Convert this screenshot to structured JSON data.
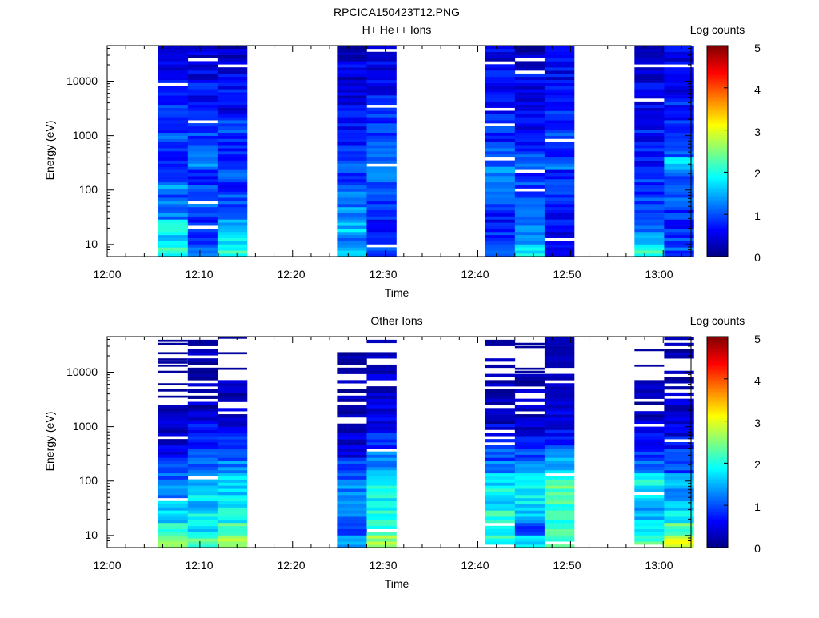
{
  "figure_title": "RPCICA150423T12.PNG",
  "chart_data": [
    {
      "type": "heatmap",
      "title": "H+ He++ Ions",
      "xlabel": "Time",
      "ylabel": "Energy (eV)",
      "y_scale": "log",
      "ylim": [
        6,
        45000
      ],
      "x_range": [
        "12:00",
        "13:03"
      ],
      "x_ticks": [
        "12:00",
        "12:10",
        "12:20",
        "12:30",
        "12:40",
        "12:50",
        "13:00"
      ],
      "y_ticks": [
        "10",
        "100",
        "1000",
        "10000"
      ],
      "colorbar": {
        "label": "Log counts",
        "range": [
          0,
          5
        ],
        "ticks": [
          "0",
          "1",
          "2",
          "3",
          "4",
          "5"
        ],
        "colormap": "jet"
      },
      "grid": false,
      "blocks": [
        {
          "start": "12:05.5",
          "end": "12:08.7",
          "levels": [
            2.1,
            1.7,
            1.9,
            1.2,
            1.1,
            1.3,
            1.0,
            0.9,
            0.8,
            1.0,
            0.9,
            0.7,
            0.8,
            0.6,
            0.7,
            0.5,
            0.4
          ]
        },
        {
          "start": "12:08.7",
          "end": "12:11.9",
          "levels": [
            1.1,
            0.9,
            0.8,
            1.0,
            1.2,
            0.9,
            0.8,
            1.3,
            1.1,
            0.9,
            0.7,
            0.8,
            0.6,
            0.7,
            0.5,
            0.5,
            0.4
          ]
        },
        {
          "start": "12:11.9",
          "end": "12:15.1",
          "levels": [
            2.1,
            1.7,
            1.4,
            1.2,
            1.0,
            0.8,
            1.0,
            0.9,
            0.7,
            0.8,
            0.9,
            0.6,
            0.5,
            0.7,
            0.5,
            0.4,
            0.4
          ]
        },
        {
          "start": "12:24.8",
          "end": "12:28.0",
          "levels": [
            1.6,
            1.3,
            1.6,
            1.4,
            1.2,
            1.1,
            0.9,
            1.0,
            0.8,
            0.6,
            0.7,
            0.6,
            0.5,
            0.6,
            0.4,
            0.5,
            0.3
          ]
        },
        {
          "start": "12:28.0",
          "end": "12:31.2",
          "levels": [
            1.0,
            0.8,
            0.7,
            0.9,
            1.0,
            1.1,
            1.2,
            1.3,
            1.0,
            1.0,
            0.9,
            0.8,
            0.7,
            0.6,
            0.5,
            0.5,
            0.5
          ]
        },
        {
          "start": "12:40.8",
          "end": "12:44.0",
          "levels": [
            1.0,
            0.9,
            0.7,
            0.8,
            1.0,
            1.1,
            1.3,
            1.2,
            1.0,
            0.8,
            0.9,
            0.7,
            0.6,
            0.7,
            0.6,
            0.5,
            0.5
          ]
        },
        {
          "start": "12:44.0",
          "end": "12:47.2",
          "levels": [
            1.8,
            1.3,
            1.2,
            1.1,
            0.9,
            1.0,
            0.8,
            1.1,
            0.9,
            0.8,
            0.6,
            0.7,
            0.5,
            0.4,
            0.6,
            0.4,
            0.3
          ]
        },
        {
          "start": "12:47.2",
          "end": "12:50.4",
          "levels": [
            0.7,
            0.5,
            0.6,
            0.7,
            0.8,
            0.9,
            0.8,
            1.2,
            0.9,
            1.0,
            0.8,
            0.9,
            0.7,
            0.8,
            0.6,
            0.7,
            0.6
          ]
        },
        {
          "start": "12:56.9",
          "end": "13:00.1",
          "levels": [
            2.1,
            1.6,
            1.2,
            1.0,
            0.9,
            0.8,
            0.9,
            0.7,
            0.8,
            0.6,
            0.7,
            0.5,
            0.6,
            0.5,
            0.4,
            0.4,
            0.3
          ]
        },
        {
          "start": "13:00.1",
          "end": "13:03.3",
          "levels": [
            1.0,
            0.9,
            0.8,
            0.9,
            1.0,
            1.2,
            1.1,
            1.6,
            1.0,
            0.9,
            0.8,
            0.7,
            0.8,
            0.6,
            0.6,
            0.5,
            0.5
          ]
        }
      ]
    },
    {
      "type": "heatmap",
      "title": "Other Ions",
      "xlabel": "Time",
      "ylabel": "Energy (eV)",
      "y_scale": "log",
      "ylim": [
        6,
        45000
      ],
      "x_range": [
        "12:00",
        "13:03"
      ],
      "x_ticks": [
        "12:00",
        "12:10",
        "12:20",
        "12:30",
        "12:40",
        "12:50",
        "13:00"
      ],
      "y_ticks": [
        "10",
        "100",
        "1000",
        "10000"
      ],
      "colorbar": {
        "label": "Log counts",
        "range": [
          0,
          5
        ],
        "ticks": [
          "0",
          "1",
          "2",
          "3",
          "4",
          "5"
        ],
        "colormap": "jet"
      },
      "grid": false,
      "blocks": [
        {
          "start": "12:05.5",
          "end": "12:08.7",
          "levels": [
            2.7,
            2.2,
            1.6,
            1.5,
            1.3,
            1.1,
            0.9,
            0.6,
            0.5,
            0.4,
            0.3,
            0.2,
            null,
            null,
            null,
            null,
            null
          ]
        },
        {
          "start": "12:08.7",
          "end": "12:11.9",
          "levels": [
            2.3,
            1.8,
            1.9,
            1.6,
            1.7,
            1.5,
            1.2,
            1.0,
            0.8,
            0.6,
            0.4,
            0.3,
            0.3,
            0.2,
            0.2,
            0.2,
            0.1
          ]
        },
        {
          "start": "12:11.9",
          "end": "12:15.1",
          "levels": [
            2.6,
            2.2,
            1.9,
            1.8,
            1.7,
            1.6,
            1.3,
            0.9,
            0.7,
            0.5,
            0.3,
            0.3,
            0.2,
            0.2,
            null,
            null,
            null
          ]
        },
        {
          "start": "12:24.8",
          "end": "12:28.0",
          "levels": [
            1.4,
            1.0,
            1.2,
            1.5,
            1.3,
            1.1,
            0.9,
            0.6,
            0.4,
            0.4,
            0.3,
            0.2,
            0.2,
            0.1,
            0.1,
            0.1,
            0.1
          ]
        },
        {
          "start": "12:28.0",
          "end": "12:31.2",
          "levels": [
            2.6,
            2.0,
            2.0,
            1.9,
            2.1,
            1.7,
            1.4,
            1.2,
            0.9,
            0.7,
            0.6,
            0.4,
            0.3,
            0.3,
            0.2,
            0.1,
            0.1
          ]
        },
        {
          "start": "12:40.8",
          "end": "12:44.0",
          "levels": [
            2.0,
            1.8,
            2.1,
            1.7,
            1.9,
            1.6,
            1.3,
            1.0,
            0.8,
            0.5,
            0.3,
            0.3,
            0.2,
            0.2,
            0.1,
            0.1,
            0.1
          ]
        },
        {
          "start": "12:44.0",
          "end": "12:47.2",
          "levels": [
            1.7,
            0.8,
            1.5,
            1.8,
            1.9,
            2.0,
            1.2,
            1.0,
            0.7,
            0.5,
            0.3,
            0.2,
            0.2,
            0.1,
            null,
            null,
            null
          ]
        },
        {
          "start": "12:47.2",
          "end": "12:50.4",
          "levels": [
            2.2,
            2.1,
            2.0,
            2.2,
            2.3,
            2.1,
            1.6,
            1.4,
            0.9,
            0.6,
            0.4,
            0.3,
            0.2,
            0.2,
            0.1,
            0.1,
            0.1
          ]
        },
        {
          "start": "12:56.9",
          "end": "13:00.1",
          "levels": [
            2.3,
            1.7,
            1.6,
            1.5,
            1.6,
            1.9,
            1.2,
            0.9,
            0.6,
            0.5,
            0.3,
            0.2,
            0.2,
            0.1,
            null,
            null,
            null
          ]
        },
        {
          "start": "13:00.1",
          "end": "13:03.3",
          "levels": [
            2.9,
            2.3,
            1.8,
            1.5,
            1.3,
            1.5,
            1.0,
            0.8,
            0.6,
            0.4,
            0.3,
            0.3,
            0.2,
            0.2,
            0.1,
            0.1,
            0.1
          ]
        }
      ]
    }
  ]
}
